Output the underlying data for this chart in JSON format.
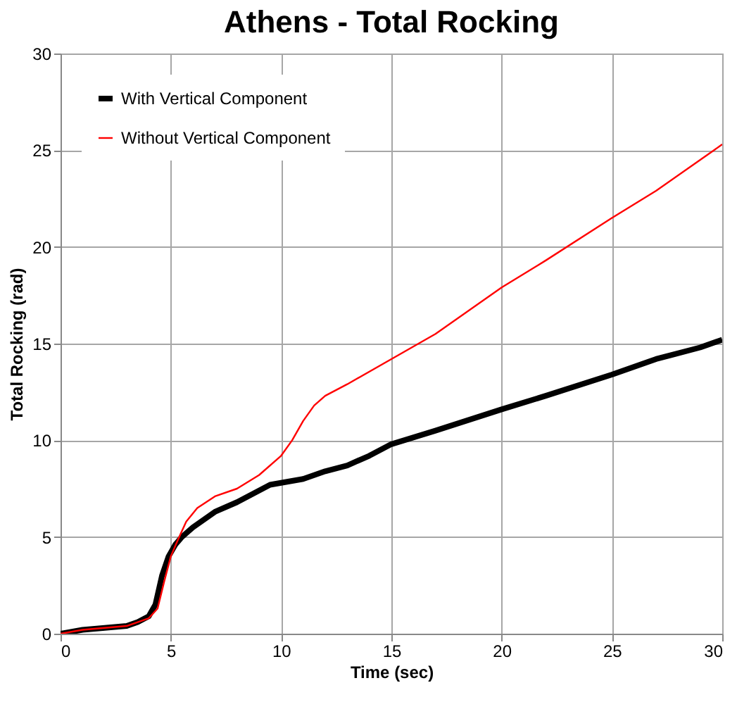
{
  "chart_data": {
    "type": "line",
    "title": "Athens - Total Rocking",
    "xlabel": "Time (sec)",
    "ylabel": "Total Rocking  (rad)",
    "xlim": [
      0,
      30
    ],
    "xticks": [
      0,
      5,
      10,
      15,
      20,
      25,
      30
    ],
    "ylim": [
      0,
      30
    ],
    "yticks": [
      0,
      5,
      10,
      15,
      20,
      25,
      30
    ],
    "grid": true,
    "legend": "top left",
    "line_style": "solid",
    "marker": "none",
    "series": [
      {
        "name": "With Vertical Component",
        "color": "#000000",
        "x": [
          0,
          1,
          2,
          3,
          3.5,
          4,
          4.3,
          4.6,
          4.9,
          5.2,
          5.5,
          6,
          7,
          8,
          9,
          9.5,
          10,
          11,
          12,
          13,
          14,
          15,
          17,
          20,
          22,
          25,
          27,
          29,
          30
        ],
        "values": [
          0,
          0.2,
          0.3,
          0.4,
          0.6,
          0.9,
          1.5,
          3.0,
          4.0,
          4.6,
          5.0,
          5.5,
          6.3,
          6.8,
          7.4,
          7.7,
          7.8,
          8.0,
          8.4,
          8.7,
          9.2,
          9.8,
          10.5,
          11.6,
          12.3,
          13.4,
          14.2,
          14.8,
          15.2
        ]
      },
      {
        "name": "Without Vertical Component",
        "color": "#ff0000",
        "x": [
          0,
          1,
          2,
          3,
          4,
          4.4,
          4.7,
          5.0,
          5.3,
          5.7,
          6.2,
          7,
          8,
          9,
          10,
          10.5,
          11,
          11.5,
          12,
          13,
          15,
          17,
          20,
          22,
          25,
          27,
          30
        ],
        "values": [
          0,
          0.2,
          0.3,
          0.4,
          0.8,
          1.3,
          2.7,
          4.0,
          4.8,
          5.8,
          6.5,
          7.1,
          7.5,
          8.2,
          9.2,
          10.0,
          11.0,
          11.8,
          12.3,
          12.9,
          14.2,
          15.5,
          17.9,
          19.3,
          21.5,
          22.9,
          25.3
        ]
      }
    ]
  }
}
